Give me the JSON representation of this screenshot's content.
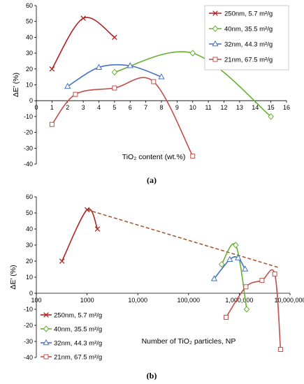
{
  "chart_data": [
    {
      "type": "line",
      "panel_label": "(a)",
      "xlabel": "TiO₂  content (wt.%)",
      "ylabel": "ΔE' (%)",
      "xlim": [
        0,
        16
      ],
      "ylim": [
        -40,
        60
      ],
      "x_ticks": [
        "0",
        "1",
        "2",
        "3",
        "4",
        "5",
        "6",
        "7",
        "8",
        "9",
        "10",
        "11",
        "12",
        "13",
        "14",
        "15",
        "16"
      ],
      "y_ticks": [
        "60",
        "50",
        "40",
        "30",
        "20",
        "10",
        "0",
        "-10",
        "-20",
        "-30",
        "-40"
      ],
      "legend_position": "top-right",
      "series": [
        {
          "name": "250nm, 5.7 m²/g",
          "color": "#B22222",
          "marker": "x",
          "x": [
            1,
            3,
            5
          ],
          "y": [
            20,
            52,
            40
          ]
        },
        {
          "name": "40nm, 35.5 m²/g",
          "color": "#66B032",
          "marker": "diamond",
          "x": [
            5,
            10,
            15
          ],
          "y": [
            18,
            30,
            -10
          ]
        },
        {
          "name": "32nm, 44.3 m²/g",
          "color": "#4472C4",
          "marker": "triangle",
          "x": [
            2,
            4,
            6,
            8
          ],
          "y": [
            9,
            21,
            22,
            15
          ]
        },
        {
          "name": "21nm, 67.5 m²/g",
          "color": "#C0504D",
          "marker": "square",
          "x": [
            1,
            2.5,
            5,
            7.5,
            10
          ],
          "y": [
            -15,
            4,
            8,
            12,
            -35
          ]
        }
      ]
    },
    {
      "type": "scatter",
      "panel_label": "(b)",
      "xlabel": "Number of TiO₂ particles, NP",
      "ylabel": "ΔE' (%)",
      "x_scale": "log",
      "xlim": [
        100,
        10000000
      ],
      "ylim": [
        -40,
        60
      ],
      "x_ticks": [
        "100",
        "1000",
        "10,000",
        "100,000",
        "1,000,000",
        "10,000,000"
      ],
      "y_ticks": [
        "60",
        "50",
        "40",
        "30",
        "20",
        "10",
        "0",
        "-10",
        "-20",
        "-30",
        "-40"
      ],
      "legend_position": "bottom-left",
      "trend_line": {
        "x": [
          1000,
          6000000
        ],
        "y": [
          52,
          16
        ],
        "style": "dashed",
        "color": "#A0522D"
      },
      "series": [
        {
          "name": "250nm, 5.7 m²/g",
          "color": "#B22222",
          "marker": "x",
          "x": [
            320,
            1000,
            1600
          ],
          "y": [
            20,
            52,
            40
          ]
        },
        {
          "name": "40nm, 35.5 m²/g",
          "color": "#66B032",
          "marker": "diamond",
          "x": [
            450000,
            850000,
            1400000
          ],
          "y": [
            18,
            30,
            -10
          ]
        },
        {
          "name": "32nm, 44.3 m²/g",
          "color": "#4472C4",
          "marker": "triangle",
          "x": [
            320000,
            650000,
            950000,
            1300000
          ],
          "y": [
            9,
            21,
            22,
            15
          ]
        },
        {
          "name": "21nm, 67.5 m²/g",
          "color": "#C0504D",
          "marker": "square",
          "x": [
            550000,
            1350000,
            2800000,
            5000000,
            6500000
          ],
          "y": [
            -15,
            4,
            8,
            12,
            -35
          ]
        }
      ]
    }
  ]
}
